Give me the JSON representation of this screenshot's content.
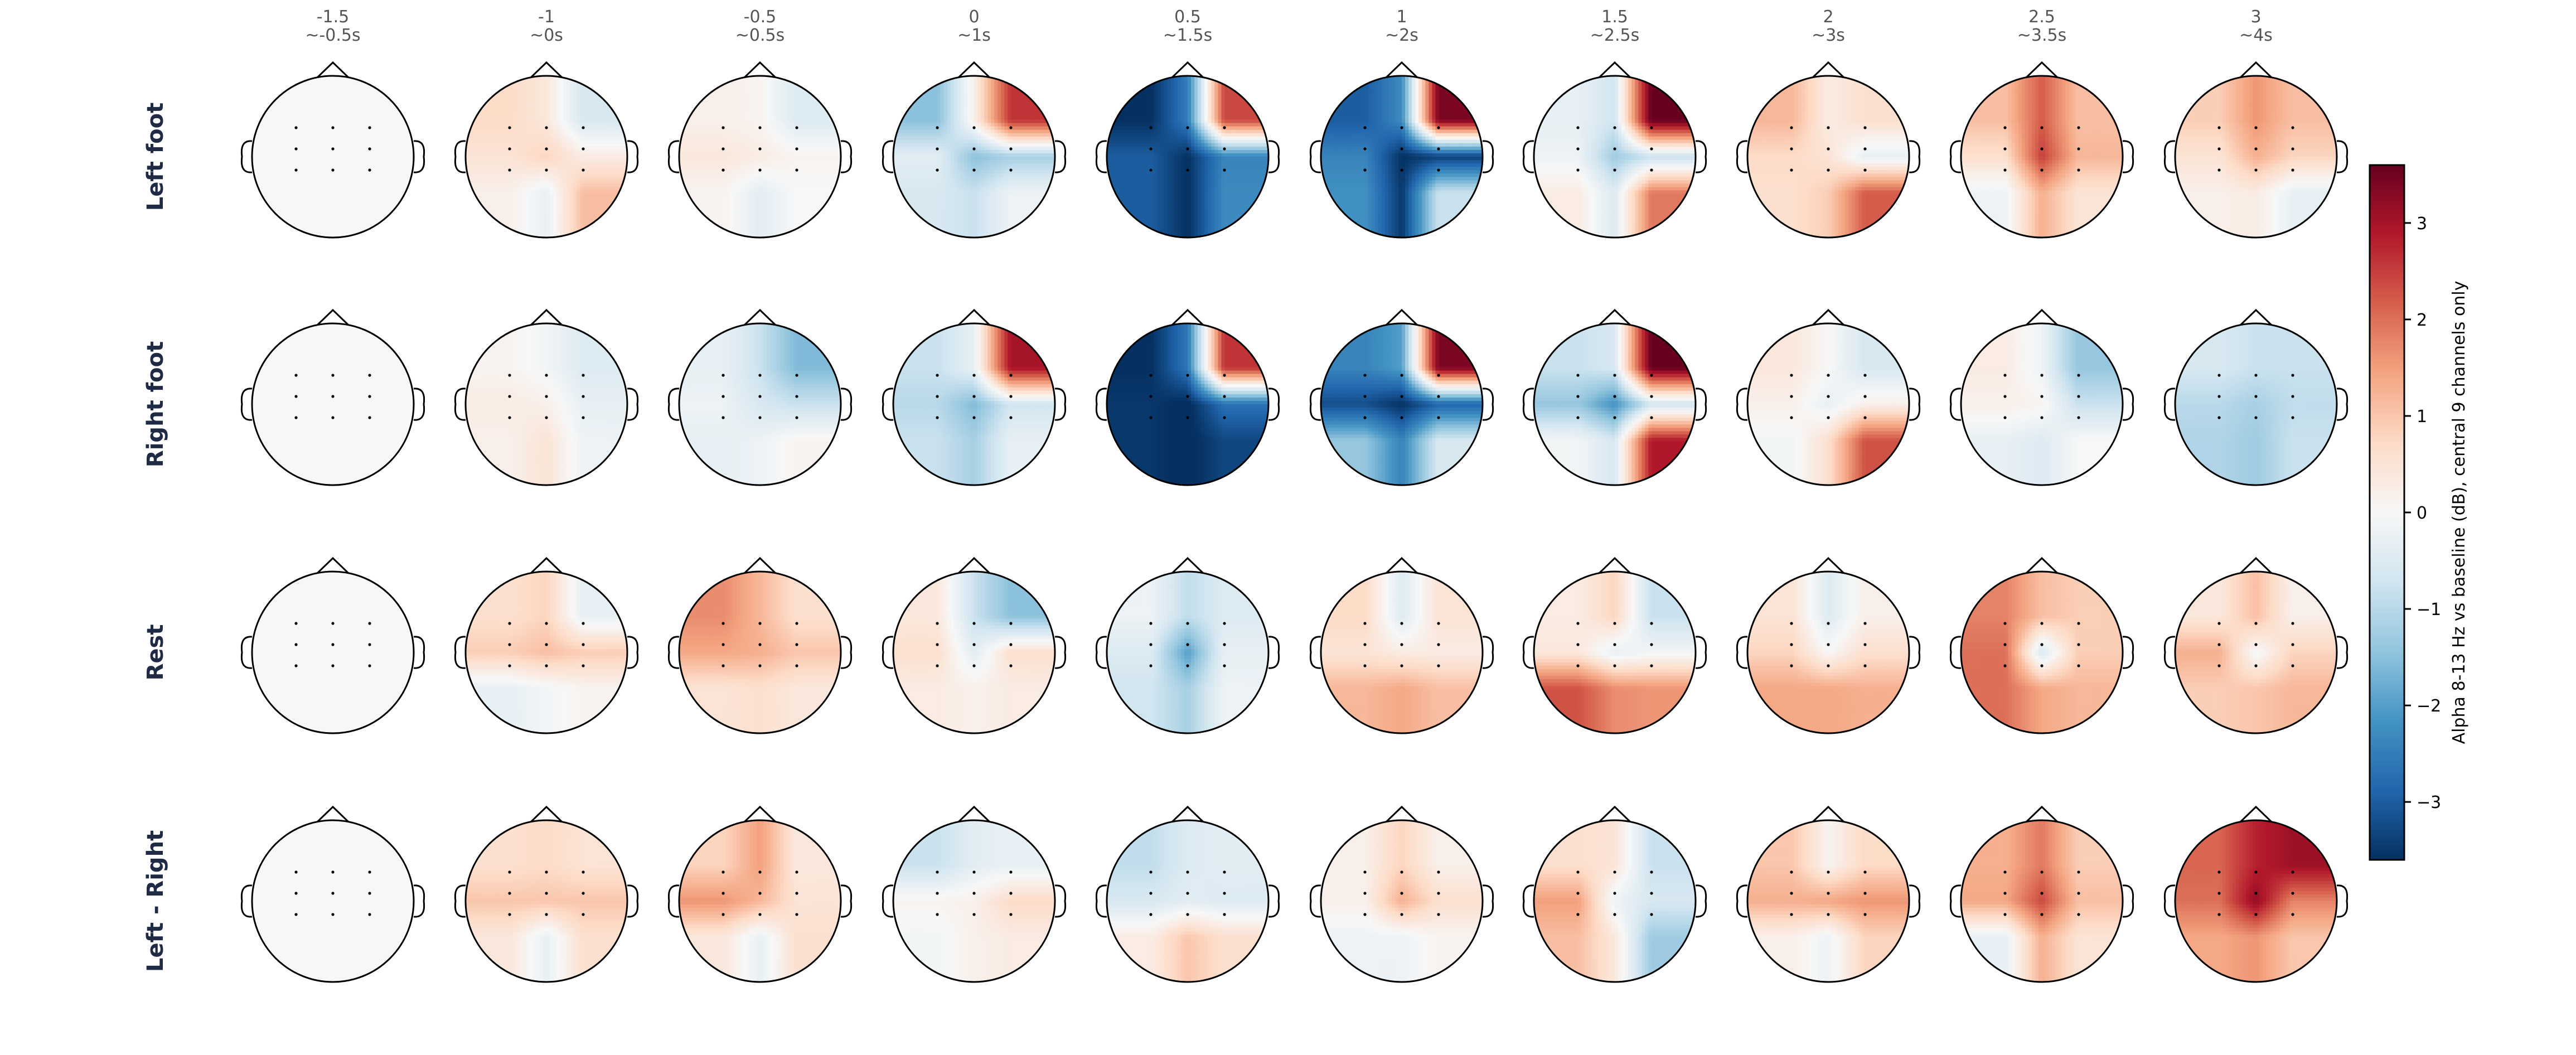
{
  "chart_data": {
    "type": "heatmap",
    "subtype": "eeg-scalp-topomap-grid",
    "title": "",
    "columns": [
      {
        "time": "-1.5",
        "window": "~-0.5s"
      },
      {
        "time": "-1",
        "window": "~0s"
      },
      {
        "time": "-0.5",
        "window": "~0.5s"
      },
      {
        "time": "0",
        "window": "~1s"
      },
      {
        "time": "0.5",
        "window": "~1.5s"
      },
      {
        "time": "1",
        "window": "~2s"
      },
      {
        "time": "1.5",
        "window": "~2.5s"
      },
      {
        "time": "2",
        "window": "~3s"
      },
      {
        "time": "2.5",
        "window": "~3.5s"
      },
      {
        "time": "3",
        "window": "~4s"
      }
    ],
    "rows": [
      "Left foot",
      "Right foot",
      "Rest",
      "Left - Right"
    ],
    "channel_grid_note": "values are 3x3 central channels (front row first, left to right), dB vs baseline",
    "values": [
      [
        [
          [
            0,
            0,
            0
          ],
          [
            0,
            0,
            0
          ],
          [
            0,
            0,
            0
          ]
        ],
        [
          [
            0.7,
            0.4,
            -0.6
          ],
          [
            0.5,
            0.8,
            0.3
          ],
          [
            0.2,
            -0.3,
            1.1
          ]
        ],
        [
          [
            0.2,
            0.1,
            -0.5
          ],
          [
            0.4,
            0.3,
            0.1
          ],
          [
            0.1,
            -0.4,
            0
          ]
        ],
        [
          [
            -1.5,
            0.2,
            2.6
          ],
          [
            -0.4,
            -1.5,
            -1.2
          ],
          [
            -0.6,
            -0.8,
            -0.2
          ]
        ],
        [
          [
            -3.6,
            -2.5,
            2.4
          ],
          [
            -3,
            -3.6,
            -2.4
          ],
          [
            -3,
            -3.6,
            -2.3
          ]
        ],
        [
          [
            -3,
            -2.3,
            3.4
          ],
          [
            -2.4,
            -3.6,
            -3.4
          ],
          [
            -2.2,
            -3.5,
            -0.8
          ]
        ],
        [
          [
            -0.3,
            -0.7,
            3.6
          ],
          [
            -0.2,
            -1.3,
            -0.8
          ],
          [
            0.3,
            -0.5,
            1.9
          ]
        ],
        [
          [
            1.2,
            0.3,
            0.6
          ],
          [
            0.7,
            0.5,
            -0.3
          ],
          [
            0.6,
            0.9,
            2.2
          ]
        ],
        [
          [
            1.1,
            2.2,
            1.1
          ],
          [
            0.6,
            2.5,
            1.2
          ],
          [
            -0.2,
            1.3,
            0.5
          ]
        ],
        [
          [
            0.9,
            1.6,
            1.1
          ],
          [
            0.5,
            1.3,
            0.8
          ],
          [
            0.2,
            0.3,
            -0.3
          ]
        ]
      ],
      [
        [
          [
            0,
            0,
            0
          ],
          [
            0,
            0,
            0
          ],
          [
            0,
            0,
            0
          ]
        ],
        [
          [
            0.1,
            -0.1,
            -0.5
          ],
          [
            0.3,
            0.2,
            -0.3
          ],
          [
            0.2,
            0.5,
            -0.2
          ]
        ],
        [
          [
            -0.3,
            -0.8,
            -1.6
          ],
          [
            -0.2,
            -0.6,
            -0.8
          ],
          [
            -0.3,
            -0.2,
            0.1
          ]
        ],
        [
          [
            -0.8,
            -0.3,
            3
          ],
          [
            -1,
            -1.6,
            -0.7
          ],
          [
            -0.8,
            -1.2,
            -0.3
          ]
        ],
        [
          [
            -3.6,
            -2.6,
            2.6
          ],
          [
            -3.5,
            -3.7,
            -2.7
          ],
          [
            -3.5,
            -3.7,
            -3.3
          ]
        ],
        [
          [
            -2.4,
            -2,
            3.4
          ],
          [
            -3.2,
            -3.6,
            -2.9
          ],
          [
            -1.4,
            -2.4,
            -0.6
          ]
        ],
        [
          [
            -0.8,
            -0.6,
            3.6
          ],
          [
            -1.4,
            -2.2,
            -0.7
          ],
          [
            -0.1,
            -0.6,
            2.9
          ]
        ],
        [
          [
            0.4,
            0,
            -0.6
          ],
          [
            0.2,
            -0.3,
            0.2
          ],
          [
            -0.1,
            0.6,
            2.3
          ]
        ],
        [
          [
            0.3,
            -0.2,
            -1.4
          ],
          [
            0.2,
            0.1,
            -0.8
          ],
          [
            -0.3,
            -0.5,
            0
          ]
        ],
        [
          [
            -0.6,
            -0.8,
            -0.8
          ],
          [
            -1,
            -1.2,
            -0.9
          ],
          [
            -1.1,
            -1.3,
            -0.8
          ]
        ]
      ],
      [
        [
          [
            0,
            0,
            0
          ],
          [
            0,
            0,
            0
          ],
          [
            0,
            0,
            0
          ]
        ],
        [
          [
            0.6,
            0.8,
            -0.3
          ],
          [
            0.9,
            1.1,
            0.9
          ],
          [
            -0.3,
            -0.1,
            0.1
          ]
        ],
        [
          [
            1.7,
            1.2,
            0.6
          ],
          [
            1.4,
            1.3,
            1
          ],
          [
            0.5,
            0.6,
            0.4
          ]
        ],
        [
          [
            0.4,
            -0.8,
            -1.5
          ],
          [
            0.6,
            -0.4,
            0.6
          ],
          [
            0.3,
            0.2,
            0.3
          ]
        ],
        [
          [
            -0.2,
            -0.9,
            -0.5
          ],
          [
            -0.5,
            -2,
            -0.3
          ],
          [
            -0.7,
            -1.2,
            -0.2
          ]
        ],
        [
          [
            0.7,
            -0.5,
            0.5
          ],
          [
            0.5,
            0.3,
            0.3
          ],
          [
            1.2,
            1.4,
            1.1
          ]
        ],
        [
          [
            0.3,
            0.8,
            -0.8
          ],
          [
            0.4,
            -0.3,
            -0.1
          ],
          [
            2.3,
            1.7,
            1.6
          ]
        ],
        [
          [
            0.5,
            -0.5,
            0.2
          ],
          [
            0.8,
            0,
            0.6
          ],
          [
            1.4,
            1.4,
            1.3
          ]
        ],
        [
          [
            1.8,
            1.1,
            0.9
          ],
          [
            2,
            -0.6,
            0.9
          ],
          [
            2,
            1.4,
            1.2
          ]
        ],
        [
          [
            0.4,
            1.1,
            0.2
          ],
          [
            1.3,
            -0.1,
            0.8
          ],
          [
            0.9,
            1,
            1.2
          ]
        ]
      ],
      [
        [
          [
            0,
            0,
            0
          ],
          [
            0,
            0,
            0
          ],
          [
            0,
            0,
            0
          ]
        ],
        [
          [
            0.6,
            0.7,
            0.5
          ],
          [
            1,
            1,
            1
          ],
          [
            0.4,
            -0.3,
            0.6
          ]
        ],
        [
          [
            0.8,
            1.5,
            0.4
          ],
          [
            1.6,
            1.2,
            0.5
          ],
          [
            0.4,
            -0.3,
            0.6
          ]
        ],
        [
          [
            -0.8,
            -0.4,
            -0.3
          ],
          [
            0.1,
            0.2,
            0.7
          ],
          [
            -0.1,
            0.2,
            0.3
          ]
        ],
        [
          [
            -0.9,
            -0.5,
            -0.4
          ],
          [
            -0.6,
            -0.4,
            -0.5
          ],
          [
            0.3,
            1,
            0.6
          ]
        ],
        [
          [
            0.2,
            0.8,
            0.2
          ],
          [
            0.2,
            1.3,
            0.6
          ],
          [
            -0.2,
            -0.2,
            0.1
          ]
        ],
        [
          [
            0.6,
            0.5,
            -0.8
          ],
          [
            1.5,
            -0.2,
            -0.6
          ],
          [
            1.1,
            0.4,
            -1.3
          ]
        ],
        [
          [
            1,
            0.1,
            0.7
          ],
          [
            1.3,
            1.4,
            1.6
          ],
          [
            0.2,
            -0.2,
            0.8
          ]
        ],
        [
          [
            1.3,
            1.9,
            0.9
          ],
          [
            1.4,
            2.4,
            1.1
          ],
          [
            -0.3,
            1.3,
            0.5
          ]
        ],
        [
          [
            2.1,
            2.8,
            3.1
          ],
          [
            2,
            3.2,
            1.8
          ],
          [
            1.4,
            1.6,
            1
          ]
        ]
      ]
    ],
    "colormap": "RdBu_r",
    "colorbar": {
      "label": "Alpha 8-13 Hz vs baseline (dB), central 9 channels only",
      "min": -3.6,
      "max": 3.6,
      "ticks": [
        -3,
        -2,
        -1,
        0,
        1,
        2,
        3
      ],
      "tick_labels": [
        "−3",
        "−2",
        "−1",
        "0",
        "1",
        "2",
        "3"
      ]
    },
    "colors": {
      "low": "#053061",
      "mid": "#f7f7f7",
      "high": "#67001f",
      "row_label": "#1f2a44",
      "column_label": "#555555"
    }
  }
}
